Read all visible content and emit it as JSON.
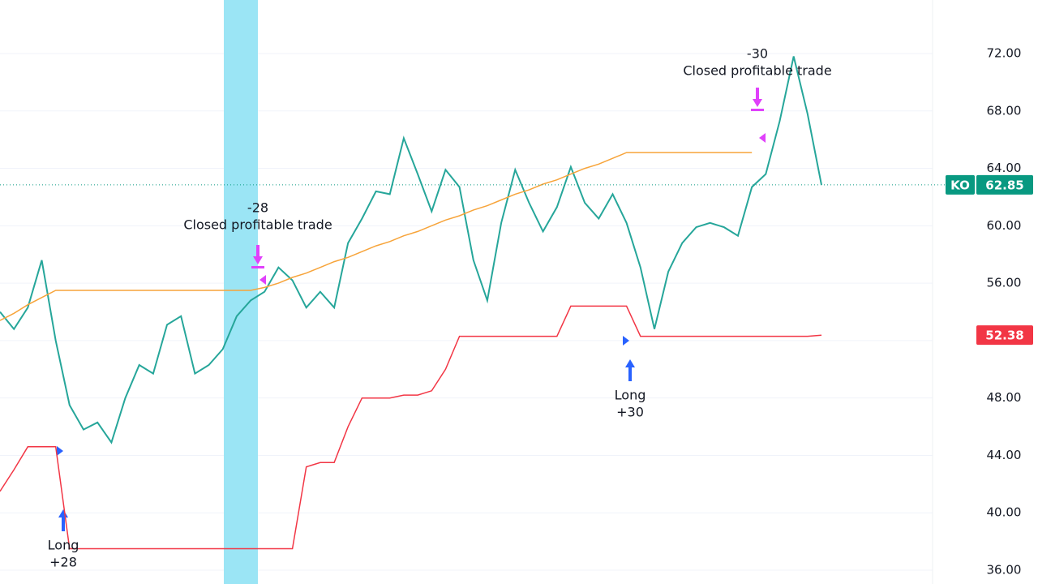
{
  "chart_data": {
    "type": "line",
    "categories": [
      null,
      null,
      null,
      null,
      null,
      null,
      null,
      null,
      null,
      null,
      null,
      null,
      null,
      null,
      null,
      null,
      null,
      null,
      null,
      null,
      null,
      null,
      null,
      null,
      null,
      null,
      null,
      null,
      null,
      null,
      null,
      null,
      null,
      null,
      null,
      null,
      null,
      null,
      null,
      null,
      null,
      null,
      null,
      null,
      null,
      null,
      null,
      null,
      null,
      null,
      null,
      null,
      null,
      null,
      null,
      null,
      null,
      null,
      null,
      null
    ],
    "series": [
      {
        "name": "KO",
        "color": "#26a69a",
        "values": [
          54.0,
          52.8,
          54.3,
          57.6,
          52.0,
          47.5,
          45.8,
          46.3,
          44.9,
          48.0,
          50.3,
          49.7,
          53.1,
          53.7,
          49.7,
          50.3,
          51.4,
          53.7,
          54.8,
          55.4,
          57.1,
          56.2,
          54.3,
          55.4,
          54.3,
          58.8,
          60.5,
          62.4,
          62.2,
          66.1,
          63.6,
          61.0,
          63.9,
          62.7,
          57.6,
          54.8,
          60.2,
          63.9,
          61.6,
          59.6,
          61.3,
          64.1,
          61.6,
          60.5,
          62.2,
          60.2,
          57.1,
          52.8,
          56.8,
          58.8,
          59.9,
          60.2,
          59.9,
          59.3,
          62.7,
          63.6,
          67.3,
          71.8,
          67.8,
          62.85
        ]
      },
      {
        "color": "#f7a43a",
        "values": [
          53.4,
          53.9,
          54.5,
          55.0,
          55.5,
          55.5,
          55.5,
          55.5,
          55.5,
          55.5,
          55.5,
          55.5,
          55.5,
          55.5,
          55.5,
          55.5,
          55.5,
          55.5,
          55.5,
          55.7,
          56.0,
          56.4,
          56.7,
          57.1,
          57.5,
          57.8,
          58.2,
          58.6,
          58.9,
          59.3,
          59.6,
          60.0,
          60.4,
          60.7,
          61.1,
          61.4,
          61.8,
          62.2,
          62.5,
          62.9,
          63.2,
          63.6,
          64.0,
          64.3,
          64.7,
          65.1,
          65.1,
          65.1,
          65.1,
          65.1,
          65.1,
          65.1,
          65.1,
          65.1,
          65.1,
          null,
          null,
          null,
          null,
          null
        ]
      },
      {
        "color": "#f23645",
        "values": [
          41.5,
          43.0,
          44.6,
          44.6,
          44.6,
          37.5,
          37.5,
          37.5,
          37.5,
          37.5,
          37.5,
          37.5,
          37.5,
          37.5,
          37.5,
          37.5,
          37.5,
          37.5,
          37.5,
          37.5,
          37.5,
          37.5,
          43.2,
          43.5,
          43.5,
          46.0,
          48.0,
          48.0,
          48.0,
          48.2,
          48.2,
          48.5,
          50.0,
          52.3,
          52.3,
          52.3,
          52.3,
          52.3,
          52.3,
          52.3,
          52.3,
          54.4,
          54.4,
          54.4,
          54.4,
          54.4,
          52.3,
          52.3,
          52.3,
          52.3,
          52.3,
          52.3,
          52.3,
          52.3,
          52.3,
          52.3,
          52.3,
          52.3,
          52.3,
          52.38
        ]
      }
    ],
    "ylim": [
      35.04,
      75.73
    ],
    "yticks": [
      {
        "value": 36,
        "label": "36.00"
      },
      {
        "value": 40,
        "label": "40.00"
      },
      {
        "value": 44,
        "label": "44.00"
      },
      {
        "value": 48,
        "label": "48.00"
      },
      {
        "value": 52,
        "label": "52.00"
      },
      {
        "value": 56,
        "label": "56.00"
      },
      {
        "value": 60,
        "label": "60.00"
      },
      {
        "value": 64,
        "label": "64.00"
      },
      {
        "value": 68,
        "label": "68.00"
      },
      {
        "value": 72,
        "label": "72.00"
      }
    ],
    "grid": true,
    "annotations": [
      {
        "lines": [
          "Long",
          "+28"
        ]
      },
      {
        "lines": [
          "-28",
          "Closed profitable trade"
        ]
      },
      {
        "lines": [
          "Long",
          "+30"
        ]
      },
      {
        "lines": [
          "-30",
          "Closed profitable trade"
        ]
      }
    ],
    "price_tags": [
      {
        "symbol": "KO",
        "value": 62.85,
        "color": "#089981"
      },
      {
        "value": 52.38,
        "color": "#f23645"
      }
    ]
  }
}
